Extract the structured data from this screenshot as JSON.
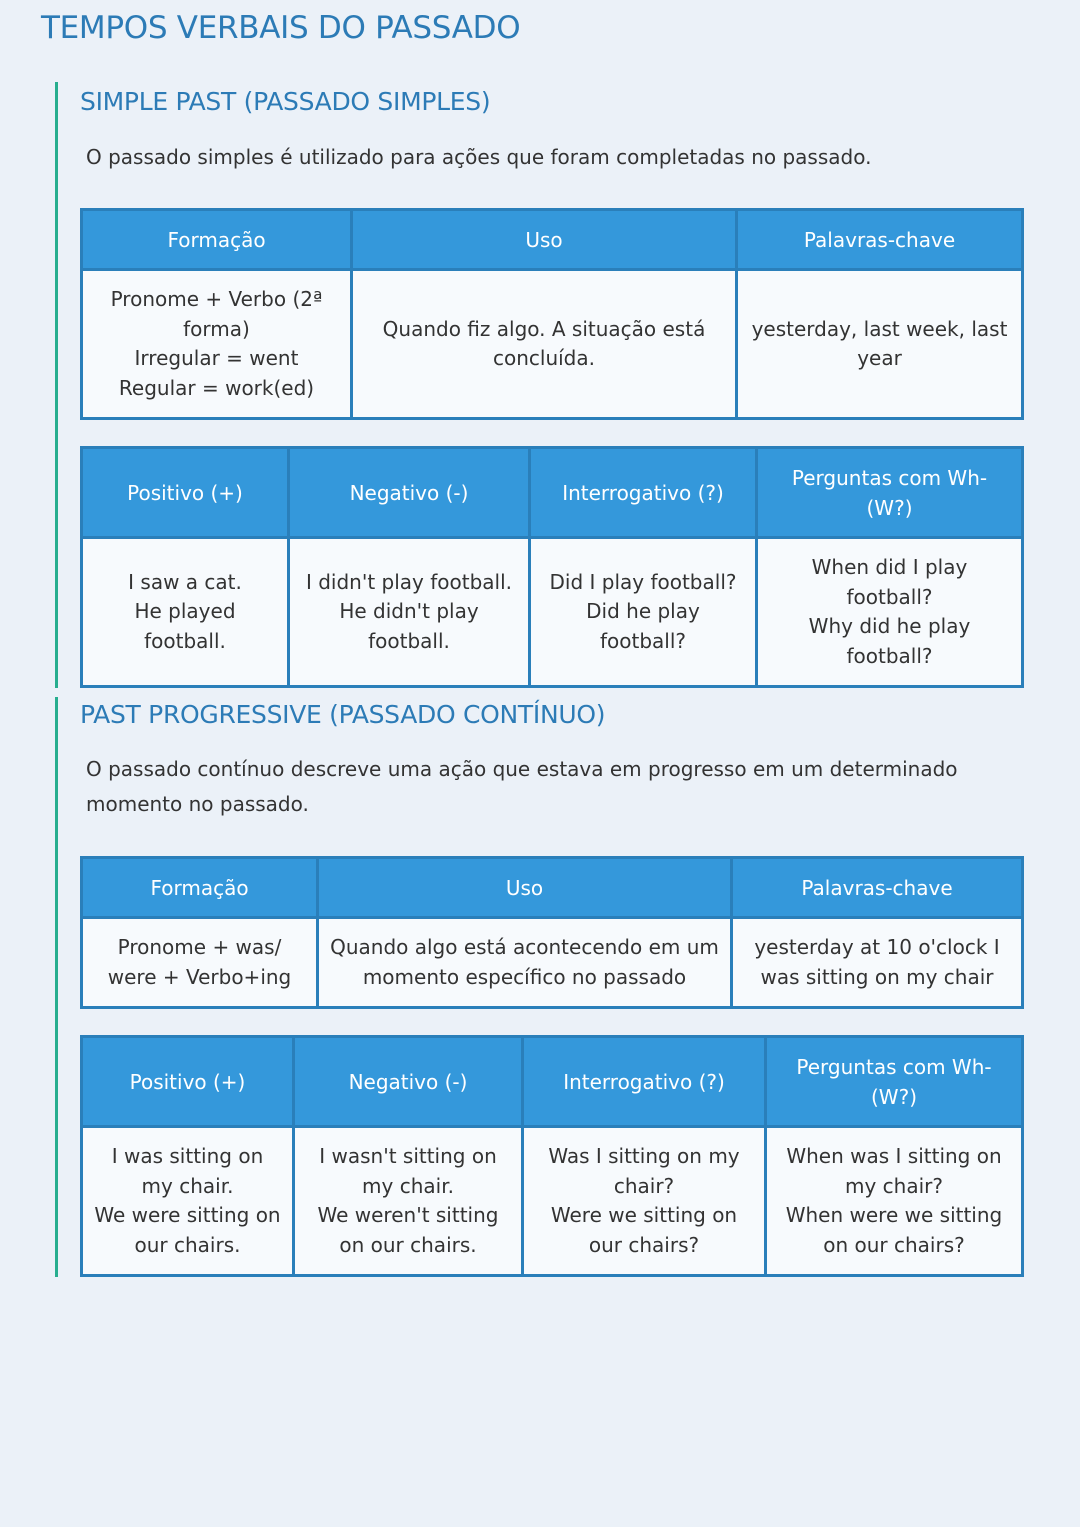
{
  "title": "TEMPOS VERBAIS DO PASSADO",
  "sections": [
    {
      "heading": "SIMPLE PAST (PASSADO SIMPLES)",
      "description": "O passado simples é utilizado para ações que foram completadas no passado.",
      "table1": {
        "headers": [
          "Formação",
          "Uso",
          "Palavras-chave"
        ],
        "cells": [
          "Pronome + Verbo (2ª forma)\nIrregular = went\nRegular = work(ed)",
          "Quando fiz algo. A situação está concluída.",
          "yesterday, last week, last year"
        ]
      },
      "table2": {
        "headers": [
          "Positivo (+)",
          "Negativo (-)",
          "Interrogativo (?)",
          "Perguntas com Wh- (W?)"
        ],
        "cells": [
          "I saw a cat.\nHe played football.",
          "I didn't play football.\nHe didn't play football.",
          "Did I play football?\nDid he play football?",
          "When did I play football?\nWhy did he play football?"
        ]
      }
    },
    {
      "heading": "PAST PROGRESSIVE (PASSADO CONTÍNUO)",
      "description": "O passado contínuo descreve uma ação que estava em progresso em um determinado momento no passado.",
      "table1": {
        "headers": [
          "Formação",
          "Uso",
          "Palavras-chave"
        ],
        "cells": [
          "Pronome + was/ were + Verbo+ing",
          "Quando algo está acontecendo em um momento específico no passado",
          "yesterday at 10 o'clock I was sitting on my chair"
        ]
      },
      "table2": {
        "headers": [
          "Positivo (+)",
          "Negativo (-)",
          "Interrogativo (?)",
          "Perguntas com Wh- (W?)"
        ],
        "cells": [
          "I was sitting on my chair.\nWe were sitting on our chairs.",
          "I wasn't sitting on my chair.\nWe weren't sitting on our chairs.",
          "Was I sitting on my chair?\nWere we sitting on our chairs?",
          "When was I sitting on my chair?\nWhen were we sitting on our chairs?"
        ]
      }
    }
  ]
}
